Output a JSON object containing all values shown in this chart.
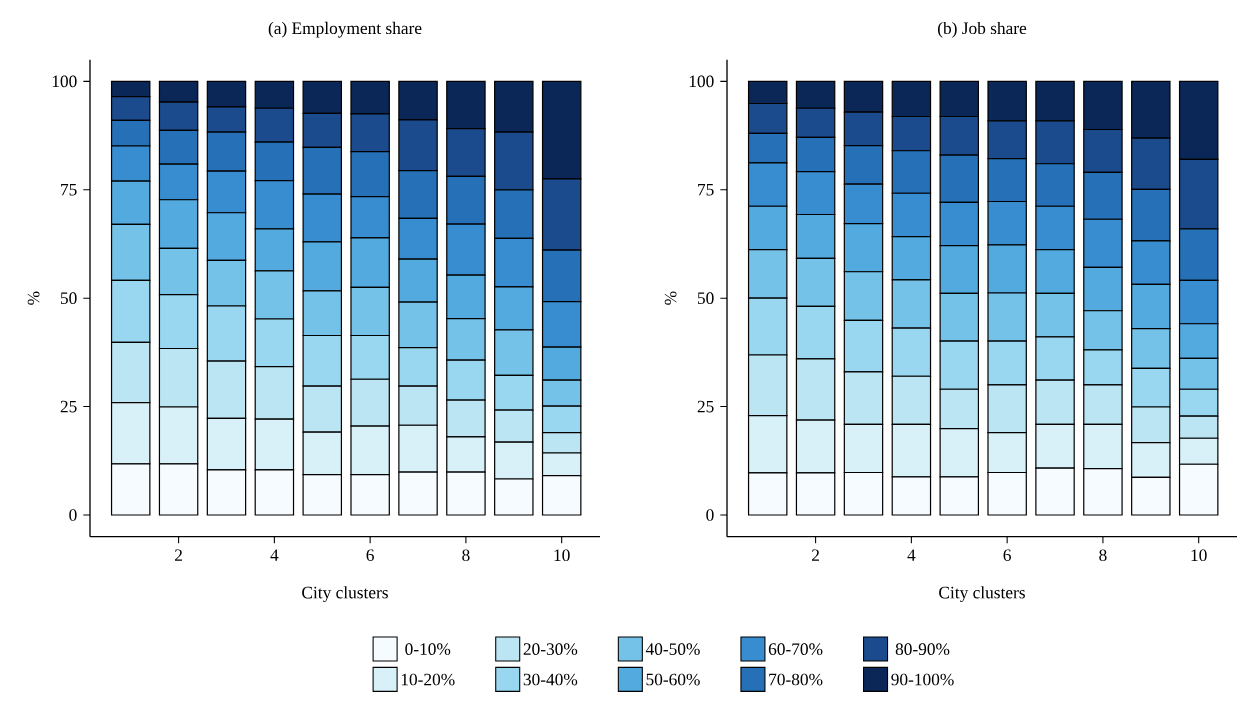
{
  "chart_data": [
    {
      "type": "bar",
      "stacked": true,
      "title": "(a) Employment share",
      "xlabel": "City clusters",
      "ylabel": "%",
      "x": [
        1,
        2,
        3,
        4,
        5,
        6,
        7,
        8,
        9,
        10
      ],
      "xlim": [
        0.15,
        10.8
      ],
      "xticks": [
        2,
        4,
        6,
        8,
        10
      ],
      "ylim": [
        -5,
        105
      ],
      "yticks": [
        0,
        25,
        50,
        75,
        100
      ],
      "legend": "bottom",
      "series": [
        {
          "name": "0-10%",
          "color": "#f5fbfe",
          "values": [
            11.8,
            11.8,
            10.4,
            10.4,
            9.3,
            9.3,
            9.9,
            9.9,
            8.3,
            9.1
          ]
        },
        {
          "name": "10-20%",
          "color": "#d8f0f8",
          "values": [
            14.1,
            13.1,
            11.9,
            11.7,
            9.8,
            11.2,
            10.8,
            8.1,
            8.5,
            5.2
          ]
        },
        {
          "name": "20-30%",
          "color": "#bbe5f2",
          "values": [
            13.9,
            13.5,
            13.2,
            12.1,
            10.6,
            10.8,
            9.0,
            8.5,
            7.4,
            4.7
          ]
        },
        {
          "name": "30-40%",
          "color": "#99d6ef",
          "values": [
            14.3,
            12.4,
            12.7,
            11.0,
            11.7,
            10.1,
            8.9,
            9.2,
            8.0,
            6.1
          ]
        },
        {
          "name": "40-50%",
          "color": "#75c2e8",
          "values": [
            12.9,
            10.7,
            10.5,
            11.1,
            10.3,
            11.1,
            10.5,
            9.6,
            10.5,
            6.0
          ]
        },
        {
          "name": "50-60%",
          "color": "#52aadf",
          "values": [
            10.0,
            11.2,
            11.0,
            9.7,
            11.3,
            11.4,
            9.9,
            10.0,
            9.9,
            7.6
          ]
        },
        {
          "name": "60-70%",
          "color": "#378dd0",
          "values": [
            8.1,
            8.2,
            9.6,
            11.1,
            11.0,
            9.5,
            9.4,
            11.8,
            11.2,
            10.5
          ]
        },
        {
          "name": "70-80%",
          "color": "#2570b6",
          "values": [
            5.9,
            7.8,
            9.0,
            8.9,
            10.8,
            10.4,
            11.0,
            11.0,
            11.2,
            11.9
          ]
        },
        {
          "name": "80-90%",
          "color": "#1b4b8c",
          "values": [
            5.5,
            6.5,
            5.8,
            7.8,
            7.8,
            8.7,
            11.7,
            11.0,
            13.3,
            16.4
          ]
        },
        {
          "name": "90-100%",
          "color": "#0b2758",
          "values": [
            3.5,
            4.8,
            5.9,
            6.2,
            7.4,
            7.5,
            8.9,
            10.9,
            11.7,
            22.5
          ]
        }
      ]
    },
    {
      "type": "bar",
      "stacked": true,
      "title": "(b) Job share",
      "xlabel": "City clusters",
      "ylabel": "%",
      "x": [
        1,
        2,
        3,
        4,
        5,
        6,
        7,
        8,
        9,
        10
      ],
      "xlim": [
        0.15,
        10.8
      ],
      "xticks": [
        2,
        4,
        6,
        8,
        10
      ],
      "ylim": [
        -5,
        105
      ],
      "yticks": [
        0,
        25,
        50,
        75,
        100
      ],
      "series": [
        {
          "color": "#f5fbfe",
          "values": [
            9.7,
            9.7,
            9.8,
            8.8,
            8.8,
            9.8,
            10.8,
            10.7,
            8.7,
            11.7
          ]
        },
        {
          "color": "#d8f0f8",
          "values": [
            13.2,
            12.2,
            11.1,
            12.1,
            11.1,
            9.2,
            10.1,
            10.2,
            8.0,
            6.0
          ]
        },
        {
          "color": "#bbe5f2",
          "values": [
            14.0,
            14.1,
            12.1,
            11.1,
            9.1,
            11.0,
            10.2,
            9.1,
            8.2,
            5.1
          ]
        },
        {
          "color": "#99d6ef",
          "values": [
            13.1,
            12.1,
            11.9,
            11.1,
            11.1,
            10.1,
            10.0,
            8.1,
            8.9,
            6.2
          ]
        },
        {
          "color": "#75c2e8",
          "values": [
            11.2,
            11.1,
            11.2,
            11.1,
            11.0,
            11.1,
            10.0,
            9.0,
            9.2,
            7.1
          ]
        },
        {
          "color": "#52aadf",
          "values": [
            10.0,
            10.1,
            11.1,
            10.0,
            11.0,
            11.1,
            10.1,
            10.0,
            10.2,
            8.0
          ]
        },
        {
          "color": "#378dd0",
          "values": [
            10.0,
            9.9,
            9.1,
            10.0,
            10.0,
            10.0,
            10.0,
            11.1,
            10.0,
            10.0
          ]
        },
        {
          "color": "#2570b6",
          "values": [
            6.8,
            7.9,
            8.9,
            9.8,
            10.9,
            9.9,
            9.8,
            10.8,
            11.9,
            11.9
          ]
        },
        {
          "color": "#1b4b8c",
          "values": [
            6.9,
            6.7,
            7.7,
            7.9,
            8.9,
            8.7,
            9.9,
            9.9,
            11.8,
            16.0
          ]
        },
        {
          "color": "#0b2758",
          "values": [
            5.1,
            6.2,
            7.1,
            8.1,
            8.1,
            9.1,
            9.1,
            11.1,
            13.1,
            18.0
          ]
        }
      ]
    }
  ]
}
